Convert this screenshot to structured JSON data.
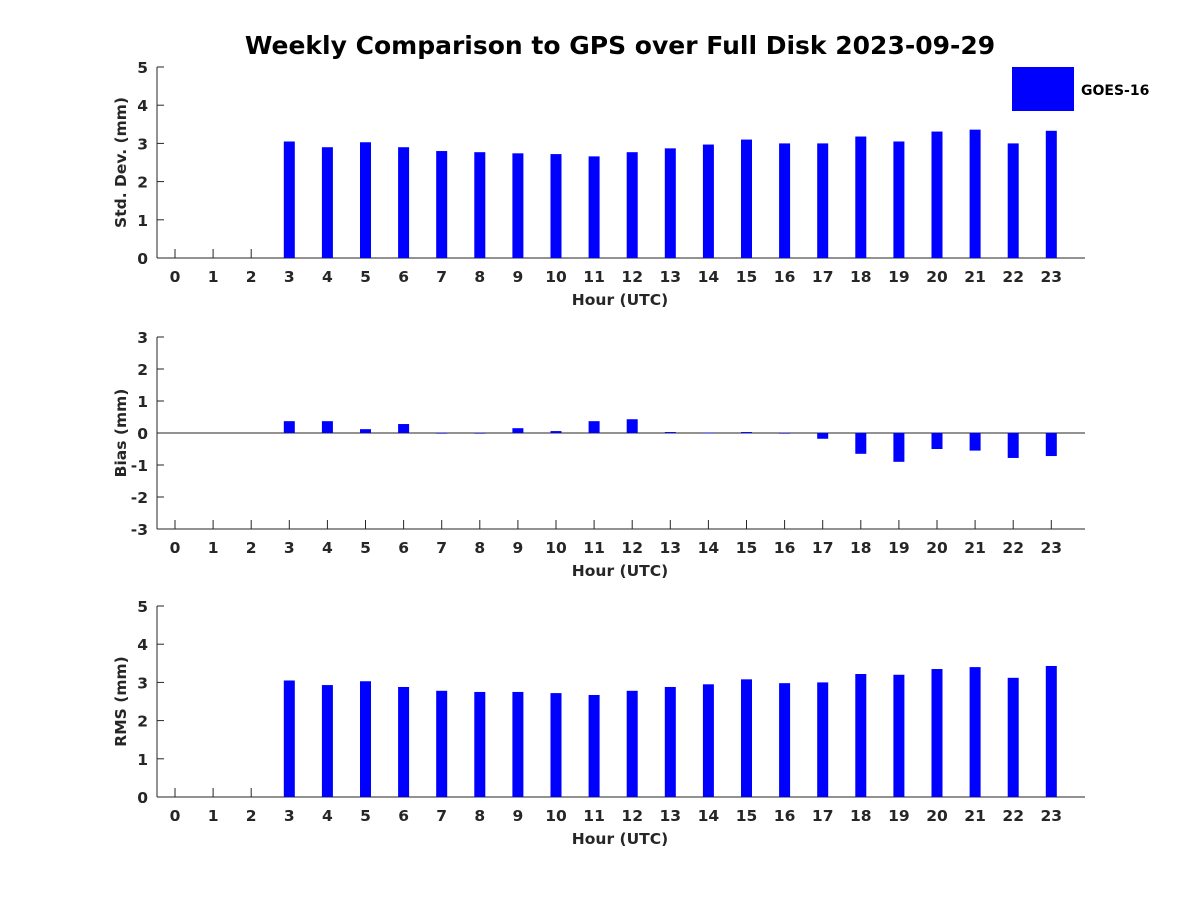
{
  "chart_data": {
    "title": "Weekly Comparison to GPS over Full Disk 2023-09-29",
    "legend": {
      "label": "GOES-16",
      "color": "#0000ff",
      "placement": "top-right"
    },
    "bar_color": "#0000ff",
    "panels": [
      {
        "id": "std",
        "type": "bar",
        "ylabel": "Std. Dev. (mm)",
        "xlabel": "Hour (UTC)",
        "ylim": [
          0,
          5
        ],
        "yticks": [
          0,
          1,
          2,
          3,
          4,
          5
        ],
        "categories": [
          0,
          1,
          2,
          3,
          4,
          5,
          6,
          7,
          8,
          9,
          10,
          11,
          12,
          13,
          14,
          15,
          16,
          17,
          18,
          19,
          20,
          21,
          22,
          23
        ],
        "values": [
          null,
          null,
          null,
          3.05,
          2.9,
          3.03,
          2.9,
          2.8,
          2.77,
          2.74,
          2.72,
          2.66,
          2.77,
          2.87,
          2.97,
          3.1,
          3.0,
          3.0,
          3.18,
          3.05,
          3.31,
          3.36,
          3.0,
          3.33
        ]
      },
      {
        "id": "bias",
        "type": "bar",
        "ylabel": "Bias (mm)",
        "xlabel": "Hour (UTC)",
        "ylim": [
          -3,
          3
        ],
        "yticks": [
          -3,
          -2,
          -1,
          0,
          1,
          2,
          3
        ],
        "categories": [
          0,
          1,
          2,
          3,
          4,
          5,
          6,
          7,
          8,
          9,
          10,
          11,
          12,
          13,
          14,
          15,
          16,
          17,
          18,
          19,
          20,
          21,
          22,
          23
        ],
        "values": [
          null,
          null,
          null,
          0.37,
          0.37,
          0.12,
          0.28,
          -0.02,
          -0.02,
          0.15,
          0.06,
          0.37,
          0.43,
          0.03,
          0.01,
          0.03,
          -0.02,
          -0.18,
          -0.65,
          -0.9,
          -0.5,
          -0.55,
          -0.78,
          -0.72
        ]
      },
      {
        "id": "rms",
        "type": "bar",
        "ylabel": "RMS (mm)",
        "xlabel": "Hour (UTC)",
        "ylim": [
          0,
          5
        ],
        "yticks": [
          0,
          1,
          2,
          3,
          4,
          5
        ],
        "categories": [
          0,
          1,
          2,
          3,
          4,
          5,
          6,
          7,
          8,
          9,
          10,
          11,
          12,
          13,
          14,
          15,
          16,
          17,
          18,
          19,
          20,
          21,
          22,
          23
        ],
        "values": [
          null,
          null,
          null,
          3.05,
          2.93,
          3.03,
          2.88,
          2.78,
          2.75,
          2.75,
          2.72,
          2.67,
          2.78,
          2.88,
          2.95,
          3.08,
          2.98,
          3.0,
          3.22,
          3.2,
          3.35,
          3.4,
          3.12,
          3.43
        ]
      }
    ]
  }
}
